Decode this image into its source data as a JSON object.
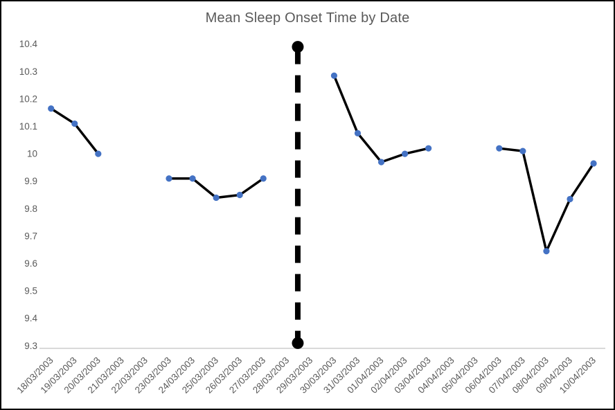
{
  "chart_data": {
    "type": "line",
    "title": "Mean Sleep Onset Time by Date",
    "xlabel": "",
    "ylabel": "",
    "categories": [
      "18/03/2003",
      "19/03/2003",
      "20/03/2003",
      "21/03/2003",
      "22/03/2003",
      "23/03/2003",
      "24/03/2003",
      "25/03/2003",
      "26/03/2003",
      "27/03/2003",
      "28/03/2003",
      "29/03/2003",
      "30/03/2003",
      "31/03/2003",
      "01/04/2003",
      "02/04/2003",
      "03/04/2003",
      "04/04/2003",
      "05/04/2003",
      "06/04/2003",
      "07/04/2003",
      "08/04/2003",
      "09/04/2003",
      "10/04/2003"
    ],
    "series": [
      {
        "name": "Mean Sleep Onset Time",
        "values": [
          10.165,
          10.11,
          10.0,
          null,
          null,
          9.91,
          9.91,
          9.84,
          9.85,
          9.91,
          null,
          null,
          10.285,
          10.075,
          9.97,
          10.0,
          10.02,
          null,
          null,
          10.02,
          10.01,
          9.645,
          9.835,
          9.965
        ]
      }
    ],
    "event_line": {
      "x_index": 10.46,
      "y_top": 10.39,
      "y_bottom": 9.31,
      "style": "dashed"
    },
    "ylim": [
      9.3,
      10.4
    ],
    "ytick_step": 0.1,
    "y_tick_labels": [
      "10.4",
      "10.3",
      "10.2",
      "10.1",
      "10",
      "9.9",
      "9.8",
      "9.7",
      "9.6",
      "9.5",
      "9.4",
      "9.3"
    ],
    "grid": false,
    "legend": false,
    "colors": {
      "marker": "#4472C4",
      "line": "#000000",
      "event_line": "#000000",
      "axis_line": "#D9D9D9",
      "text": "#595959"
    }
  }
}
